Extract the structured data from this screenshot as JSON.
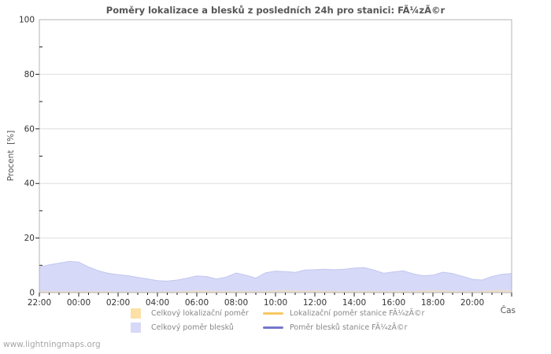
{
  "watermark": "www.lightningmaps.org",
  "chart_data": {
    "type": "area",
    "title": "Poměry lokalizace a blesků z posledních 24h pro stanici: FÃ¼zÃ©r",
    "xlabel": "Čas",
    "ylabel": "Procent  [%]",
    "ylim": [
      0,
      100
    ],
    "grid": true,
    "y_major_ticks": [
      0,
      20,
      40,
      60,
      80,
      100
    ],
    "y_minor_step": 10,
    "x_tick_labels": [
      "22:00",
      "00:00",
      "02:00",
      "04:00",
      "06:00",
      "08:00",
      "10:00",
      "12:00",
      "14:00",
      "16:00",
      "18:00",
      "20:00"
    ],
    "x_minor_interval_minutes": 30,
    "x": [
      "22:00",
      "22:30",
      "23:00",
      "23:30",
      "00:00",
      "00:30",
      "01:00",
      "01:30",
      "02:00",
      "02:30",
      "03:00",
      "03:30",
      "04:00",
      "04:30",
      "05:00",
      "05:30",
      "06:00",
      "06:30",
      "07:00",
      "07:30",
      "08:00",
      "08:30",
      "09:00",
      "09:30",
      "10:00",
      "10:30",
      "11:00",
      "11:30",
      "12:00",
      "12:30",
      "13:00",
      "13:30",
      "14:00",
      "14:30",
      "15:00",
      "15:30",
      "16:00",
      "16:30",
      "17:00",
      "17:30",
      "18:00",
      "18:30",
      "19:00",
      "19:30",
      "20:00",
      "20:30",
      "21:00",
      "21:30",
      "22:00"
    ],
    "series": [
      {
        "name": "Celkový lokalizační poměr",
        "style": "area",
        "color": "#fbe1a6",
        "values": [
          0.5,
          0.5,
          0.5,
          0.5,
          0.5,
          0.5,
          0.5,
          0.5,
          0.4,
          0.4,
          0.4,
          0.4,
          0.4,
          0.4,
          0.5,
          0.6,
          0.8,
          0.8,
          0.6,
          0.6,
          0.7,
          0.6,
          0.5,
          0.6,
          0.8,
          0.9,
          0.8,
          0.6,
          0.8,
          0.7,
          0.6,
          0.6,
          0.6,
          0.7,
          0.6,
          0.5,
          0.6,
          0.6,
          0.5,
          0.8,
          0.9,
          0.8,
          0.6,
          0.5,
          0.5,
          0.6,
          0.9,
          1.0,
          0.8
        ]
      },
      {
        "name": "Celkový poměr blesků",
        "style": "area",
        "color": "#d7d9f8",
        "edge_color": "#c2c6ef",
        "values": [
          9.3,
          10.2,
          10.8,
          11.4,
          11.2,
          9.4,
          8.0,
          7.1,
          6.6,
          6.2,
          5.6,
          5.0,
          4.4,
          4.2,
          4.6,
          5.3,
          6.1,
          5.9,
          5.0,
          5.7,
          7.2,
          6.4,
          5.3,
          7.3,
          7.9,
          7.7,
          7.4,
          8.3,
          8.4,
          8.6,
          8.4,
          8.6,
          9.0,
          9.2,
          8.3,
          7.1,
          7.6,
          8.0,
          6.9,
          6.2,
          6.4,
          7.5,
          7.0,
          6.0,
          4.9,
          4.6,
          5.9,
          6.7,
          7.0
        ]
      }
    ],
    "station_series_note": "no visible data drawn for station line series",
    "legend_position": "bottom",
    "legend": [
      {
        "label": "Celkový lokalizační poměr",
        "swatch": "area",
        "color": "#fbe1a6"
      },
      {
        "label": "Lokalizační poměr stanice FÃ¼zÃ©r",
        "swatch": "line",
        "color": "#f7c863"
      },
      {
        "label": "Celkový poměr blesků",
        "swatch": "area",
        "color": "#d7d9f8"
      },
      {
        "label": "Poměr blesků stanice FÃ¼zÃ©r",
        "swatch": "line",
        "color": "#7577cd"
      }
    ],
    "colors": {
      "grid": "#dedede",
      "border": "#b4b4b4",
      "tick": "#222222",
      "tick_label": "#333333",
      "title_text": "#565656"
    }
  }
}
